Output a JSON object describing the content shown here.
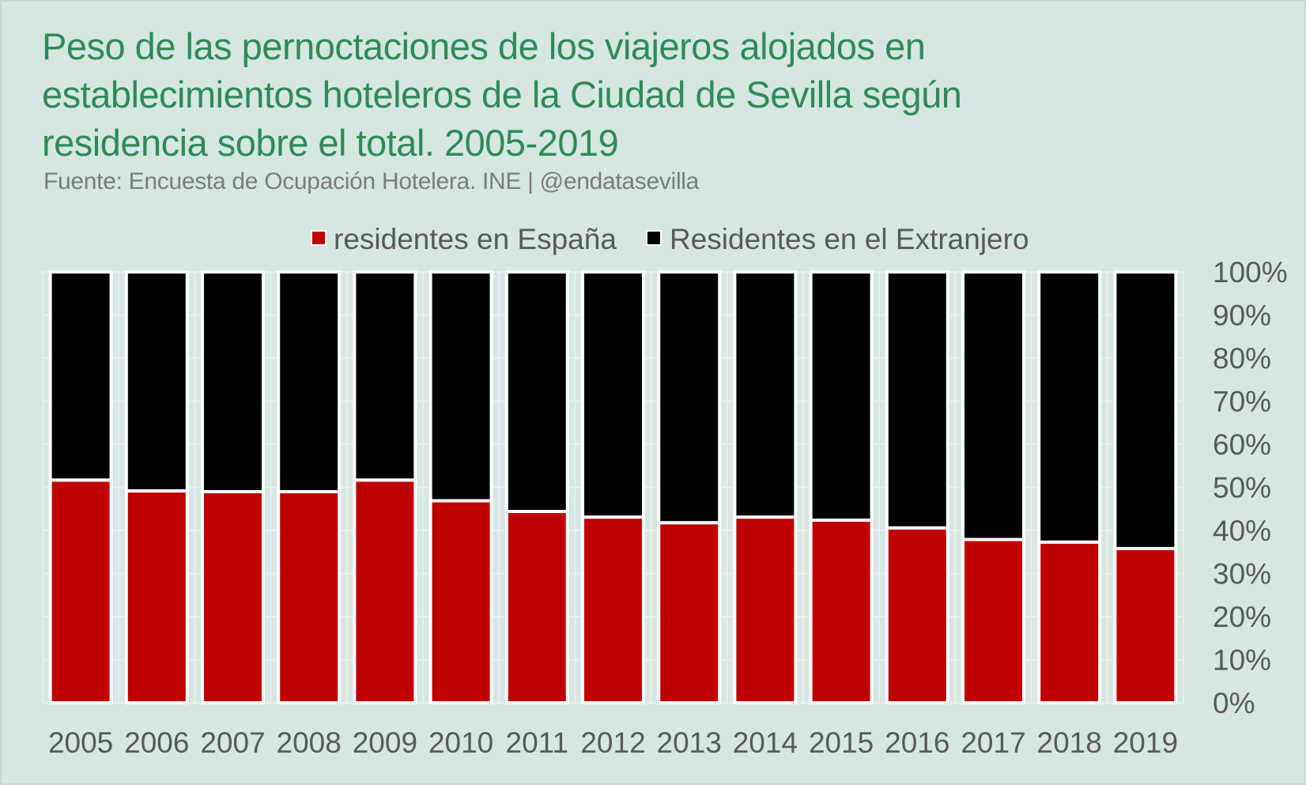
{
  "chart_data": {
    "type": "bar",
    "stacked": true,
    "percent_stacked": true,
    "title": "Peso de las pernoctaciones de los viajeros alojados en establecimientos hoteleros de la Ciudad de Sevilla según residencia sobre el total. 2005-2019",
    "subtitle": "Fuente: Encuesta de Ocupación Hotelera. INE | @endatasevilla",
    "categories": [
      "2005",
      "2006",
      "2007",
      "2008",
      "2009",
      "2010",
      "2011",
      "2012",
      "2013",
      "2014",
      "2015",
      "2016",
      "2017",
      "2018",
      "2019"
    ],
    "series": [
      {
        "name": "residentes en España",
        "color": "#c00000",
        "values": [
          51.7,
          49.2,
          49.0,
          49.0,
          51.7,
          46.9,
          44.4,
          43.1,
          41.8,
          43.1,
          42.4,
          40.6,
          37.9,
          37.3,
          35.8
        ]
      },
      {
        "name": "Residentes en el Extranjero",
        "color": "#000000",
        "values": [
          48.3,
          50.8,
          51.0,
          51.0,
          48.3,
          53.1,
          55.6,
          56.9,
          58.2,
          56.9,
          57.6,
          59.4,
          62.1,
          62.7,
          64.2
        ]
      }
    ],
    "yaxis": {
      "position": "right",
      "ylim": [
        0,
        100
      ],
      "ticks": [
        0,
        10,
        20,
        30,
        40,
        50,
        60,
        70,
        80,
        90,
        100
      ],
      "tick_labels": [
        "0%",
        "10%",
        "20%",
        "30%",
        "40%",
        "50%",
        "60%",
        "70%",
        "80%",
        "90%",
        "100%"
      ]
    },
    "xlabel": "",
    "ylabel": "",
    "grid": true,
    "legend_position": "top-center",
    "colors": {
      "background": "#d6e6e3",
      "title": "#2e8b57",
      "subtitle": "#7b7b7b",
      "axis_text": "#595959",
      "bar_outline": "#ffffff",
      "gridline": "#e8f0ef"
    }
  }
}
